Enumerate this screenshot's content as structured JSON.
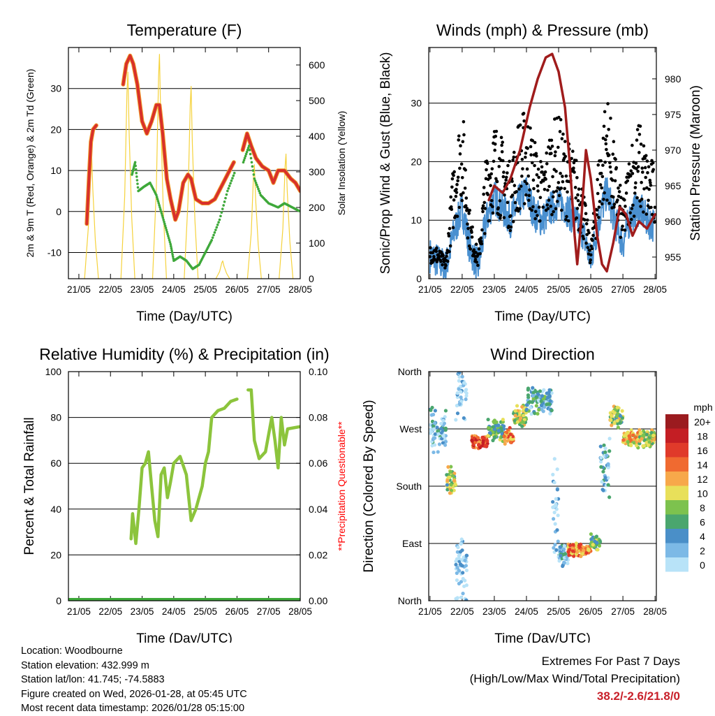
{
  "x_tick_labels": [
    "21/05",
    "22/05",
    "23/05",
    "24/05",
    "25/05",
    "26/05",
    "27/05",
    "28/05"
  ],
  "chart_data": [
    {
      "type": "line",
      "title": "Temperature (F)",
      "xlabel": "Time (Day/UTC)",
      "ylabel": "2m & 9m T (Red, Orange) & 2m Td (Green)",
      "ylabel_right": "Solar Insolation (Yellow)",
      "ylim": [
        -16.4,
        40
      ],
      "ylim_right": [
        0,
        649
      ],
      "xlim": [
        20.67,
        28.0
      ],
      "yticks": [
        "-10",
        "0",
        "10",
        "20",
        "30"
      ],
      "yticks_right": [
        "0",
        "100",
        "200",
        "300",
        "400",
        "500",
        "600"
      ],
      "series": [
        {
          "name": "Temperature",
          "color": "#d8302a",
          "points": [
            [
              21.25,
              -3
            ],
            [
              21.32,
              8
            ],
            [
              21.38,
              17
            ],
            [
              21.45,
              20
            ],
            [
              21.55,
              21
            ],
            null,
            [
              22.4,
              31
            ],
            [
              22.5,
              36
            ],
            [
              22.62,
              38
            ],
            [
              22.72,
              36
            ],
            [
              22.85,
              31
            ],
            [
              23.0,
              22
            ],
            [
              23.15,
              19
            ],
            [
              23.3,
              22
            ],
            [
              23.45,
              26
            ],
            [
              23.55,
              26
            ],
            [
              23.65,
              19
            ],
            [
              23.78,
              8
            ],
            [
              23.9,
              3
            ],
            [
              24.05,
              -2
            ],
            [
              24.15,
              0
            ],
            [
              24.3,
              7
            ],
            [
              24.45,
              9
            ],
            [
              24.55,
              8
            ],
            [
              24.7,
              3
            ],
            [
              24.9,
              2
            ],
            [
              25.1,
              2
            ],
            [
              25.3,
              3
            ],
            [
              25.5,
              6
            ],
            [
              25.7,
              9
            ],
            [
              25.9,
              12
            ],
            null,
            [
              26.18,
              15
            ],
            [
              26.32,
              19
            ],
            [
              26.45,
              16
            ],
            [
              26.6,
              13
            ],
            [
              26.8,
              11
            ],
            [
              27.0,
              10
            ],
            [
              27.15,
              7
            ],
            [
              27.3,
              10
            ],
            [
              27.5,
              10
            ],
            [
              27.7,
              8
            ],
            [
              27.85,
              7
            ],
            [
              28.0,
              5
            ]
          ]
        },
        {
          "name": "Dewpoint",
          "color": "#3ea83a",
          "points": [
            [
              22.68,
              9
            ],
            [
              22.78,
              12
            ],
            [
              22.88,
              5
            ],
            [
              23.05,
              6
            ],
            [
              23.25,
              7
            ],
            [
              23.45,
              4
            ],
            [
              23.6,
              0
            ],
            [
              23.75,
              -4
            ],
            [
              23.9,
              -8
            ],
            [
              24.0,
              -12
            ],
            [
              24.2,
              -11
            ],
            [
              24.4,
              -12
            ],
            [
              24.6,
              -14
            ],
            [
              24.8,
              -13
            ],
            [
              25.0,
              -10
            ],
            [
              25.2,
              -7
            ],
            [
              25.45,
              -2
            ],
            [
              25.7,
              5
            ],
            [
              25.95,
              10
            ],
            null,
            [
              26.2,
              12
            ],
            [
              26.38,
              16
            ],
            [
              26.55,
              8
            ],
            [
              26.75,
              4
            ],
            [
              27.0,
              2
            ],
            [
              27.3,
              1
            ],
            [
              27.5,
              2
            ],
            [
              27.75,
              1
            ],
            [
              28.0,
              0
            ]
          ]
        },
        {
          "name": "Solar Insolation",
          "color": "#f5d23c",
          "peaks": [
            [
              21.4,
              360
            ],
            [
              22.55,
              580
            ],
            [
              23.55,
              630
            ],
            [
              24.55,
              540
            ],
            [
              25.55,
              50
            ],
            [
              26.55,
              320
            ],
            [
              27.55,
              350
            ]
          ]
        }
      ]
    },
    {
      "type": "line",
      "title": "Winds (mph) & Pressure (mb)",
      "xlabel": "Time (Day/UTC)",
      "ylabel": "Sonic/Prop Wind & Gust (Blue, Black)",
      "ylabel_right": "Station Pressure (Maroon)",
      "ylim": [
        0,
        39.5
      ],
      "ylim_right": [
        951.96,
        984.4
      ],
      "xlim": [
        20.96,
        28.04
      ],
      "yticks": [
        "0",
        "10",
        "20",
        "30"
      ],
      "yticks_right": [
        "955",
        "960",
        "965",
        "970",
        "975",
        "980"
      ],
      "series": [
        {
          "name": "Wind",
          "color": "#4a90d0",
          "x_start": 21.0,
          "x_step": 0.25,
          "values": [
            4,
            3,
            2,
            8,
            12,
            5,
            2,
            10,
            14,
            12,
            10,
            13,
            15,
            11,
            10,
            12,
            13,
            12,
            10,
            8,
            3,
            10,
            15,
            10,
            6,
            11,
            12,
            10,
            9
          ]
        },
        {
          "name": "Gust",
          "color": "#000000",
          "x_start": 21.0,
          "x_step": 0.25,
          "values": [
            6,
            5,
            3,
            20,
            28,
            10,
            4,
            20,
            25,
            22,
            18,
            25,
            27,
            22,
            18,
            24,
            26,
            22,
            20,
            15,
            5,
            20,
            30,
            20,
            12,
            22,
            25,
            20,
            18
          ]
        },
        {
          "name": "Pressure",
          "color": "#a01c1c",
          "points": [
            [
              22.83,
              963
            ],
            [
              23.0,
              965
            ],
            [
              23.26,
              964
            ],
            [
              23.5,
              966
            ],
            [
              23.8,
              970
            ],
            [
              24.1,
              976
            ],
            [
              24.35,
              980
            ],
            [
              24.6,
              983
            ],
            [
              24.8,
              983.5
            ],
            [
              25.0,
              981
            ],
            [
              25.2,
              976
            ],
            [
              25.35,
              968
            ],
            [
              25.5,
              958
            ],
            [
              25.58,
              954
            ],
            [
              25.7,
              960
            ],
            [
              25.85,
              970
            ],
            [
              26.0,
              966
            ],
            [
              26.2,
              958
            ],
            [
              26.35,
              954
            ],
            [
              26.5,
              953
            ],
            [
              26.7,
              957
            ],
            [
              26.9,
              962
            ],
            [
              27.1,
              961
            ],
            [
              27.3,
              958
            ],
            [
              27.5,
              960
            ],
            [
              27.75,
              959
            ],
            [
              28.0,
              961
            ]
          ]
        }
      ]
    },
    {
      "type": "line",
      "title": "Relative Humidity (%) & Precipitation (in)",
      "xlabel": "Time (Day/UTC)",
      "ylabel": "Percent & Total Rainfall",
      "ylabel_right": "**Precipitation Questionable**",
      "ylim": [
        0,
        100
      ],
      "ylim_right": [
        0,
        0.1
      ],
      "xlim": [
        20.67,
        28.0
      ],
      "yticks": [
        "0",
        "20",
        "40",
        "60",
        "80",
        "100"
      ],
      "yticks_right": [
        "0.00",
        "0.02",
        "0.04",
        "0.06",
        "0.08",
        "0.10"
      ],
      "series": [
        {
          "name": "Relative Humidity",
          "color": "#8cc43c",
          "points": [
            [
              22.65,
              27
            ],
            [
              22.7,
              38
            ],
            [
              22.8,
              25
            ],
            [
              22.9,
              40
            ],
            [
              23.0,
              58
            ],
            [
              23.1,
              60
            ],
            [
              23.2,
              65
            ],
            [
              23.3,
              50
            ],
            [
              23.4,
              35
            ],
            [
              23.5,
              28
            ],
            [
              23.6,
              55
            ],
            [
              23.7,
              58
            ],
            [
              23.8,
              45
            ],
            [
              23.9,
              52
            ],
            [
              24.0,
              60
            ],
            [
              24.2,
              63
            ],
            [
              24.4,
              55
            ],
            [
              24.55,
              35
            ],
            [
              24.7,
              40
            ],
            [
              24.9,
              50
            ],
            [
              25.0,
              60
            ],
            [
              25.1,
              65
            ],
            [
              25.2,
              80
            ],
            [
              25.4,
              83
            ],
            [
              25.6,
              84
            ],
            [
              25.8,
              87
            ],
            [
              26.0,
              88
            ],
            null,
            [
              26.35,
              92
            ],
            [
              26.45,
              92
            ],
            [
              26.55,
              70
            ],
            [
              26.7,
              62
            ],
            [
              26.9,
              65
            ],
            [
              27.1,
              80
            ],
            [
              27.2,
              70
            ],
            [
              27.3,
              58
            ],
            [
              27.4,
              80
            ],
            [
              27.5,
              68
            ],
            [
              27.6,
              75
            ],
            [
              28.0,
              76
            ]
          ]
        },
        {
          "name": "Precipitation",
          "color": "#3ea83a",
          "points": [
            [
              20.67,
              0
            ],
            [
              28.0,
              0
            ]
          ]
        }
      ]
    },
    {
      "type": "scatter",
      "title": "Wind Direction",
      "xlabel": "Time (Day/UTC)",
      "ylabel": "Direction (Colored By Speed)",
      "ylim": [
        0,
        360
      ],
      "xlim": [
        20.96,
        28.04
      ],
      "yticks": [
        "North",
        "East",
        "South",
        "West",
        "North"
      ],
      "ytick_values": [
        0,
        90,
        180,
        270,
        360
      ],
      "legend": {
        "title": "mph",
        "labels": [
          "0",
          "2",
          "4",
          "6",
          "8",
          "10",
          "12",
          "14",
          "16",
          "18",
          "20+"
        ],
        "colors": [
          "#b8e3f8",
          "#7cb9e6",
          "#4a8fc8",
          "#4aa66e",
          "#7dc24e",
          "#e8e05a",
          "#f7a84a",
          "#f06a30",
          "#e03a2a",
          "#c41e24",
          "#9b1b1f"
        ]
      },
      "clusters": [
        {
          "start": 21.0,
          "end": 21.5,
          "dir": 270,
          "spread": 40,
          "speed": 3
        },
        {
          "start": 21.5,
          "end": 21.8,
          "dir": 185,
          "spread": 30,
          "speed": 9
        },
        {
          "start": 21.8,
          "end": 22.15,
          "dir": 330,
          "spread": 60,
          "speed": 1
        },
        {
          "start": 21.8,
          "end": 22.15,
          "dir": 60,
          "spread": 40,
          "speed": 2
        },
        {
          "start": 22.3,
          "end": 22.8,
          "dir": 250,
          "spread": 12,
          "speed": 16
        },
        {
          "start": 22.8,
          "end": 23.3,
          "dir": 268,
          "spread": 18,
          "speed": 8
        },
        {
          "start": 23.3,
          "end": 23.6,
          "dir": 258,
          "spread": 15,
          "speed": 14
        },
        {
          "start": 23.6,
          "end": 24.0,
          "dir": 290,
          "spread": 18,
          "speed": 10
        },
        {
          "start": 24.0,
          "end": 24.8,
          "dir": 315,
          "spread": 25,
          "speed": 5
        },
        {
          "start": 24.8,
          "end": 25.0,
          "dir": 150,
          "spread": 90,
          "speed": 2
        },
        {
          "start": 25.0,
          "end": 25.3,
          "dir": 70,
          "spread": 20,
          "speed": 4
        },
        {
          "start": 25.3,
          "end": 26.0,
          "dir": 80,
          "spread": 12,
          "speed": 14
        },
        {
          "start": 26.0,
          "end": 26.3,
          "dir": 90,
          "spread": 15,
          "speed": 8
        },
        {
          "start": 26.3,
          "end": 26.6,
          "dir": 210,
          "spread": 50,
          "speed": 4
        },
        {
          "start": 26.6,
          "end": 27.0,
          "dir": 290,
          "spread": 18,
          "speed": 9
        },
        {
          "start": 27.0,
          "end": 27.5,
          "dir": 255,
          "spread": 15,
          "speed": 12
        },
        {
          "start": 27.5,
          "end": 28.0,
          "dir": 255,
          "spread": 15,
          "speed": 10
        }
      ]
    }
  ],
  "info": {
    "location": "Location: Woodbourne",
    "elevation": "Station elevation: 432.999 m",
    "latlon": "Station lat/lon: 41.745; -74.5883",
    "created": "Figure created on Wed, 2026-01-28, at 05:45 UTC",
    "recent": "Most recent data timestamp: 2026/01/28 05:15:00"
  },
  "extremes": {
    "title": "Extremes For Past 7 Days",
    "subtitle": "(High/Low/Max Wind/Total Precipitation)",
    "values": "38.2/-2.6/21.8/0"
  }
}
